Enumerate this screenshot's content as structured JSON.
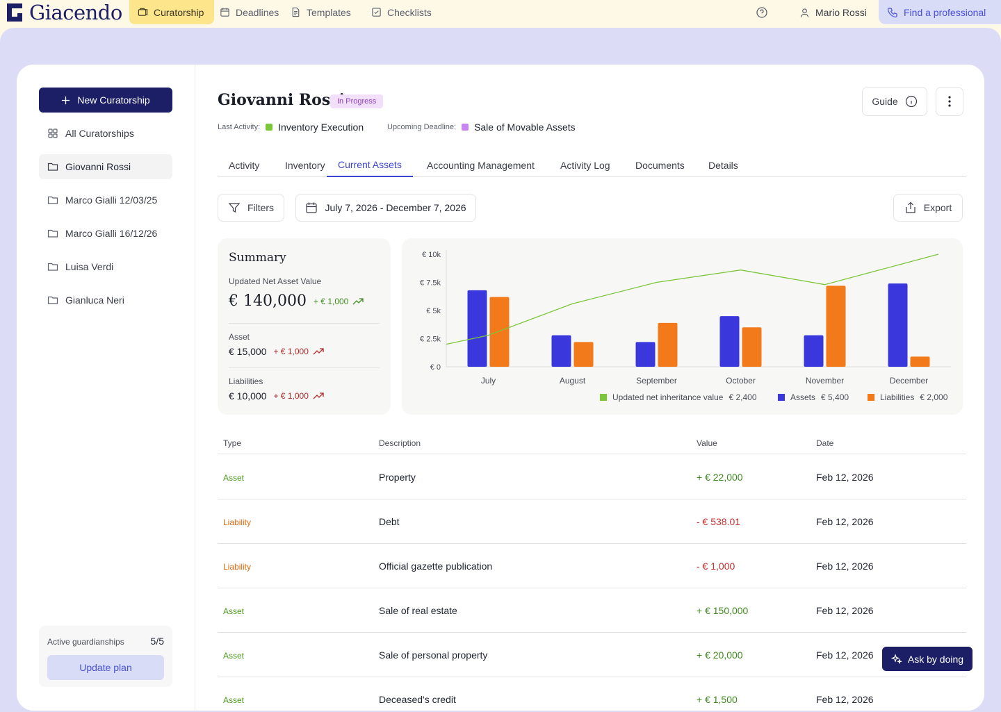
{
  "app": {
    "name": "Giacendo"
  },
  "topnav": {
    "items": [
      {
        "label": "Curatorship",
        "icon": "folders-icon",
        "active": true
      },
      {
        "label": "Deadlines",
        "icon": "calendar-icon",
        "active": false
      },
      {
        "label": "Templates",
        "icon": "document-icon",
        "active": false
      },
      {
        "label": "Checklists",
        "icon": "checklist-icon",
        "active": false
      }
    ],
    "user_name": "Mario Rossi",
    "find_professional": "Find a professional"
  },
  "sidebar": {
    "new_button": "New Curatorship",
    "all_label": "All Curatorships",
    "items": [
      {
        "label": "Giovanni Rossi",
        "active": true
      },
      {
        "label": "Marco Gialli 12/03/25",
        "active": false
      },
      {
        "label": "Marco Gialli 16/12/26",
        "active": false
      },
      {
        "label": "Luisa Verdi",
        "active": false
      },
      {
        "label": "Gianluca Neri",
        "active": false
      }
    ],
    "plan": {
      "label": "Active guardianships",
      "count": "5/5",
      "button": "Update plan"
    }
  },
  "header": {
    "title": "Giovanni Rossi",
    "status": "In Progress",
    "last_activity_label": "Last Activity:",
    "last_activity_value": "Inventory Execution",
    "upcoming_label": "Upcoming Deadline:",
    "upcoming_value": "Sale of Movable Assets",
    "guide": "Guide"
  },
  "tabs": [
    {
      "label": "Activity",
      "active": false
    },
    {
      "label": "Inventory",
      "active": false
    },
    {
      "label": "Current Assets",
      "active": true
    },
    {
      "label": "Accounting Management",
      "active": false
    },
    {
      "label": "Activity Log",
      "active": false
    },
    {
      "label": "Documents",
      "active": false
    },
    {
      "label": "Details",
      "active": false
    }
  ],
  "toolbar": {
    "filters": "Filters",
    "date_range": "July 7, 2026 - December 7, 2026",
    "export": "Export"
  },
  "summary": {
    "title": "Summary",
    "net_label": "Updated Net Asset Value",
    "net_value": "€ 140,000",
    "net_delta": "+ € 1,000",
    "asset_label": "Asset",
    "asset_value": "€ 15,000",
    "asset_delta": "+ € 1,000",
    "liab_label": "Liabilities",
    "liab_value": "€ 10,000",
    "liab_delta": "+ € 1,000"
  },
  "chart_data": {
    "type": "bar",
    "categories": [
      "July",
      "August",
      "September",
      "October",
      "November",
      "December"
    ],
    "y_ticks": [
      "€ 0",
      "€ 2.5k",
      "€ 5k",
      "€ 7.5k",
      "€ 10k"
    ],
    "ylim": [
      0,
      10000
    ],
    "series": [
      {
        "name": "Assets",
        "type": "bar",
        "color": "#3a38dc",
        "values": [
          6800,
          2800,
          2200,
          4500,
          2800,
          7400
        ]
      },
      {
        "name": "Liabilities",
        "type": "bar",
        "color": "#f27a1a",
        "values": [
          6200,
          2200,
          3900,
          3500,
          7200,
          900
        ]
      },
      {
        "name": "Updated net inheritance value",
        "type": "line",
        "color": "#7cc63a",
        "values": [
          2800,
          5600,
          7500,
          8600,
          7300,
          10000
        ]
      }
    ],
    "legend": [
      {
        "label": "Updated net inheritance value",
        "value": "€ 2,400",
        "color": "#7cc63a"
      },
      {
        "label": "Assets",
        "value": "€ 5,400",
        "color": "#3a38dc"
      },
      {
        "label": "Liabilities",
        "value": "€ 2,000",
        "color": "#f27a1a"
      }
    ]
  },
  "table": {
    "headers": {
      "type": "Type",
      "description": "Description",
      "value": "Value",
      "date": "Date"
    },
    "rows": [
      {
        "type": "Asset",
        "description": "Property",
        "value": "+ € 22,000",
        "date": "Feb 12, 2026"
      },
      {
        "type": "Liability",
        "description": "Debt",
        "value": "- € 538.01",
        "date": "Feb 12, 2026"
      },
      {
        "type": "Liability",
        "description": "Official gazette publication",
        "value": "- € 1,000",
        "date": "Feb 12, 2026"
      },
      {
        "type": "Asset",
        "description": "Sale of real estate",
        "value": "+ € 150,000",
        "date": "Feb 12, 2026"
      },
      {
        "type": "Asset",
        "description": "Sale of personal property",
        "value": "+ € 20,000",
        "date": "Feb 12, 2026"
      },
      {
        "type": "Asset",
        "description": "Deceased's credit",
        "value": "+ € 1,500",
        "date": "Feb 12, 2026"
      }
    ]
  },
  "assistant": {
    "label": "Ask by doing"
  }
}
